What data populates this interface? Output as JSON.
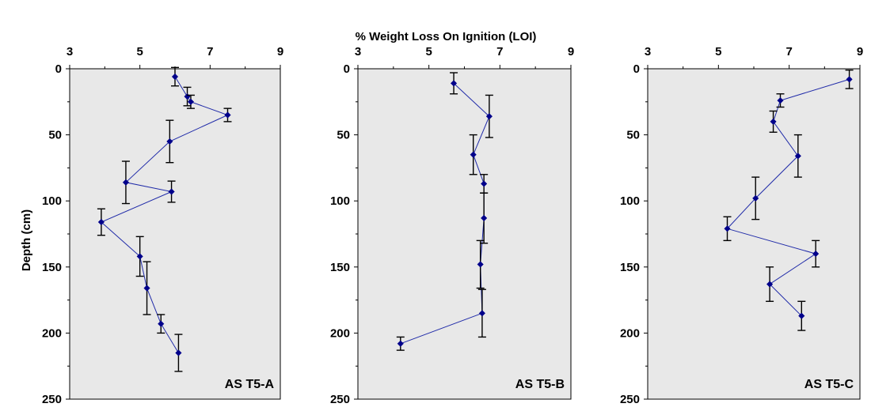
{
  "chart_data": {
    "type": "scatter",
    "title": "% Weight Loss On Ignition (LOI)",
    "ylabel": "Depth (cm)",
    "xlim": [
      3,
      9
    ],
    "ylim": [
      0,
      250
    ],
    "x_ticks": [
      "3",
      "5",
      "7",
      "9"
    ],
    "y_ticks": [
      "0",
      "50",
      "100",
      "150",
      "200",
      "250"
    ],
    "y_inverted": true,
    "grid": false,
    "panel_background": "#e8e8e8",
    "line_color": "#1f2aa8",
    "marker_color": "#00008b",
    "errorbar_color": "#000000",
    "panels": [
      {
        "label": "AS T5-A",
        "points": [
          {
            "x": 6.0,
            "y": 6,
            "err": 7
          },
          {
            "x": 6.35,
            "y": 21,
            "err": 7
          },
          {
            "x": 6.45,
            "y": 25,
            "err": 5
          },
          {
            "x": 7.5,
            "y": 35,
            "err": 5
          },
          {
            "x": 5.85,
            "y": 55,
            "err": 16
          },
          {
            "x": 4.6,
            "y": 86,
            "err": 16
          },
          {
            "x": 5.9,
            "y": 93,
            "err": 8
          },
          {
            "x": 3.9,
            "y": 116,
            "err": 10
          },
          {
            "x": 5.0,
            "y": 142,
            "err": 15
          },
          {
            "x": 5.2,
            "y": 166,
            "err": 20
          },
          {
            "x": 5.6,
            "y": 193,
            "err": 7
          },
          {
            "x": 6.1,
            "y": 215,
            "err": 14
          }
        ]
      },
      {
        "label": "AS T5-B",
        "points": [
          {
            "x": 5.7,
            "y": 11,
            "err": 8
          },
          {
            "x": 6.7,
            "y": 36,
            "err": 16
          },
          {
            "x": 6.25,
            "y": 65,
            "err": 15
          },
          {
            "x": 6.55,
            "y": 87,
            "err": 7
          },
          {
            "x": 6.55,
            "y": 113,
            "err": 19
          },
          {
            "x": 6.45,
            "y": 148,
            "err": 18
          },
          {
            "x": 6.5,
            "y": 185,
            "err": 18
          },
          {
            "x": 4.2,
            "y": 208,
            "err": 5
          }
        ]
      },
      {
        "label": "AS T5-C",
        "points": [
          {
            "x": 8.7,
            "y": 8,
            "err": 7
          },
          {
            "x": 6.75,
            "y": 24,
            "err": 5
          },
          {
            "x": 6.55,
            "y": 40,
            "err": 8
          },
          {
            "x": 7.25,
            "y": 66,
            "err": 16
          },
          {
            "x": 6.05,
            "y": 98,
            "err": 16
          },
          {
            "x": 5.25,
            "y": 121,
            "err": 9
          },
          {
            "x": 7.75,
            "y": 140,
            "err": 10
          },
          {
            "x": 6.45,
            "y": 163,
            "err": 13
          },
          {
            "x": 7.35,
            "y": 187,
            "err": 11
          }
        ]
      }
    ]
  }
}
